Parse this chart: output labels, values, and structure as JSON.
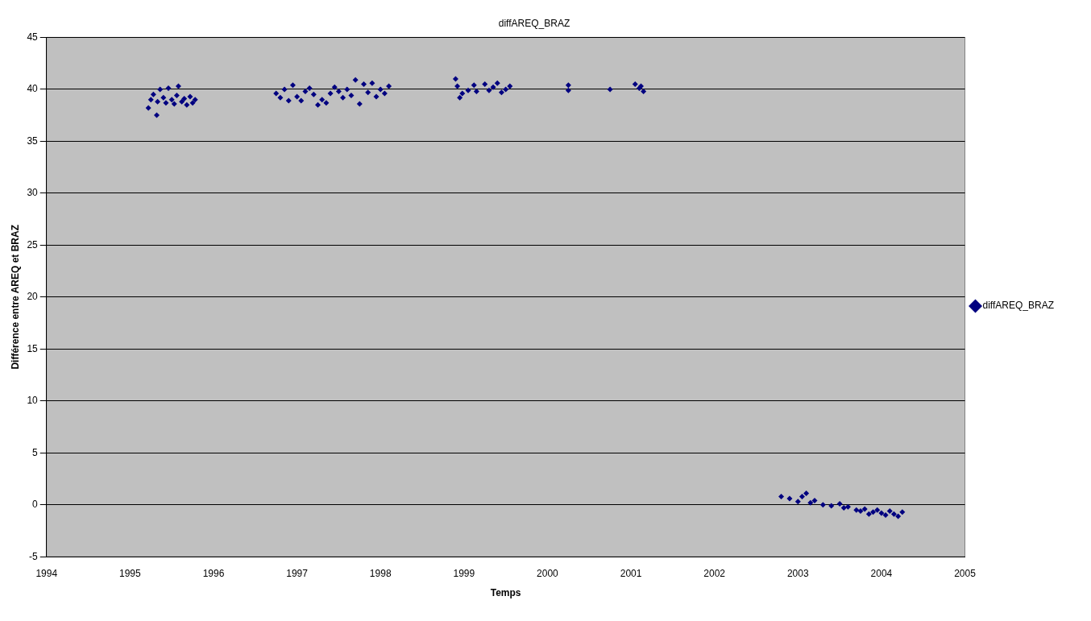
{
  "chart_data": {
    "type": "scatter",
    "title": "diffAREQ_BRAZ",
    "xlabel": "Temps",
    "ylabel": "Différence entre AREQ et BRAZ",
    "xlim": [
      1994,
      2005
    ],
    "xticks": [
      1994,
      1995,
      1996,
      1997,
      1998,
      1999,
      2000,
      2001,
      2002,
      2003,
      2004,
      2005
    ],
    "ylim": [
      -5,
      45
    ],
    "yticks": [
      -5,
      0,
      5,
      10,
      15,
      20,
      25,
      30,
      35,
      40,
      45
    ],
    "grid": "y",
    "legend": "right",
    "marker": "diamond",
    "series": [
      {
        "name": "diffAREQ_BRAZ",
        "color": "#000080",
        "x": [
          1995.22,
          1995.25,
          1995.28,
          1995.32,
          1995.33,
          1995.36,
          1995.4,
          1995.43,
          1995.46,
          1995.5,
          1995.53,
          1995.56,
          1995.58,
          1995.62,
          1995.65,
          1995.68,
          1995.72,
          1995.75,
          1995.78,
          1996.75,
          1996.8,
          1996.85,
          1996.9,
          1996.95,
          1997.0,
          1997.05,
          1997.1,
          1997.15,
          1997.2,
          1997.25,
          1997.3,
          1997.35,
          1997.4,
          1997.45,
          1997.5,
          1997.55,
          1997.6,
          1997.65,
          1997.7,
          1997.75,
          1997.8,
          1997.85,
          1997.9,
          1997.95,
          1998.0,
          1998.05,
          1998.1,
          1998.9,
          1998.92,
          1998.95,
          1998.98,
          1999.05,
          1999.12,
          1999.15,
          1999.25,
          1999.3,
          1999.35,
          1999.4,
          1999.45,
          1999.5,
          1999.55,
          2000.25,
          2000.25,
          2000.75,
          2001.05,
          2001.1,
          2001.12,
          2001.15,
          2002.8,
          2002.9,
          2003.0,
          2003.05,
          2003.1,
          2003.15,
          2003.2,
          2003.3,
          2003.4,
          2003.5,
          2003.55,
          2003.6,
          2003.7,
          2003.75,
          2003.8,
          2003.85,
          2003.9,
          2003.95,
          2004.0,
          2004.05,
          2004.1,
          2004.15,
          2004.2,
          2004.25
        ],
        "values": [
          38.2,
          39.0,
          39.5,
          37.5,
          38.8,
          40.0,
          39.2,
          38.7,
          40.1,
          39.0,
          38.6,
          39.4,
          40.3,
          38.8,
          39.1,
          38.5,
          39.3,
          38.7,
          39.0,
          39.6,
          39.2,
          40.0,
          38.9,
          40.4,
          39.3,
          38.9,
          39.8,
          40.1,
          39.5,
          38.5,
          39.0,
          38.7,
          39.6,
          40.2,
          39.8,
          39.2,
          40.0,
          39.4,
          40.9,
          38.6,
          40.5,
          39.7,
          40.6,
          39.3,
          40.0,
          39.6,
          40.3,
          41.0,
          40.3,
          39.2,
          39.6,
          39.9,
          40.4,
          39.8,
          40.5,
          39.9,
          40.2,
          40.6,
          39.7,
          40.0,
          40.3,
          40.4,
          39.9,
          40.0,
          40.5,
          40.1,
          40.3,
          39.8,
          0.8,
          0.6,
          0.3,
          0.8,
          1.1,
          0.2,
          0.4,
          0.0,
          -0.1,
          0.1,
          -0.3,
          -0.2,
          -0.5,
          -0.6,
          -0.4,
          -0.9,
          -0.7,
          -0.5,
          -0.8,
          -1.0,
          -0.6,
          -0.9,
          -1.1,
          -0.7
        ]
      }
    ]
  }
}
